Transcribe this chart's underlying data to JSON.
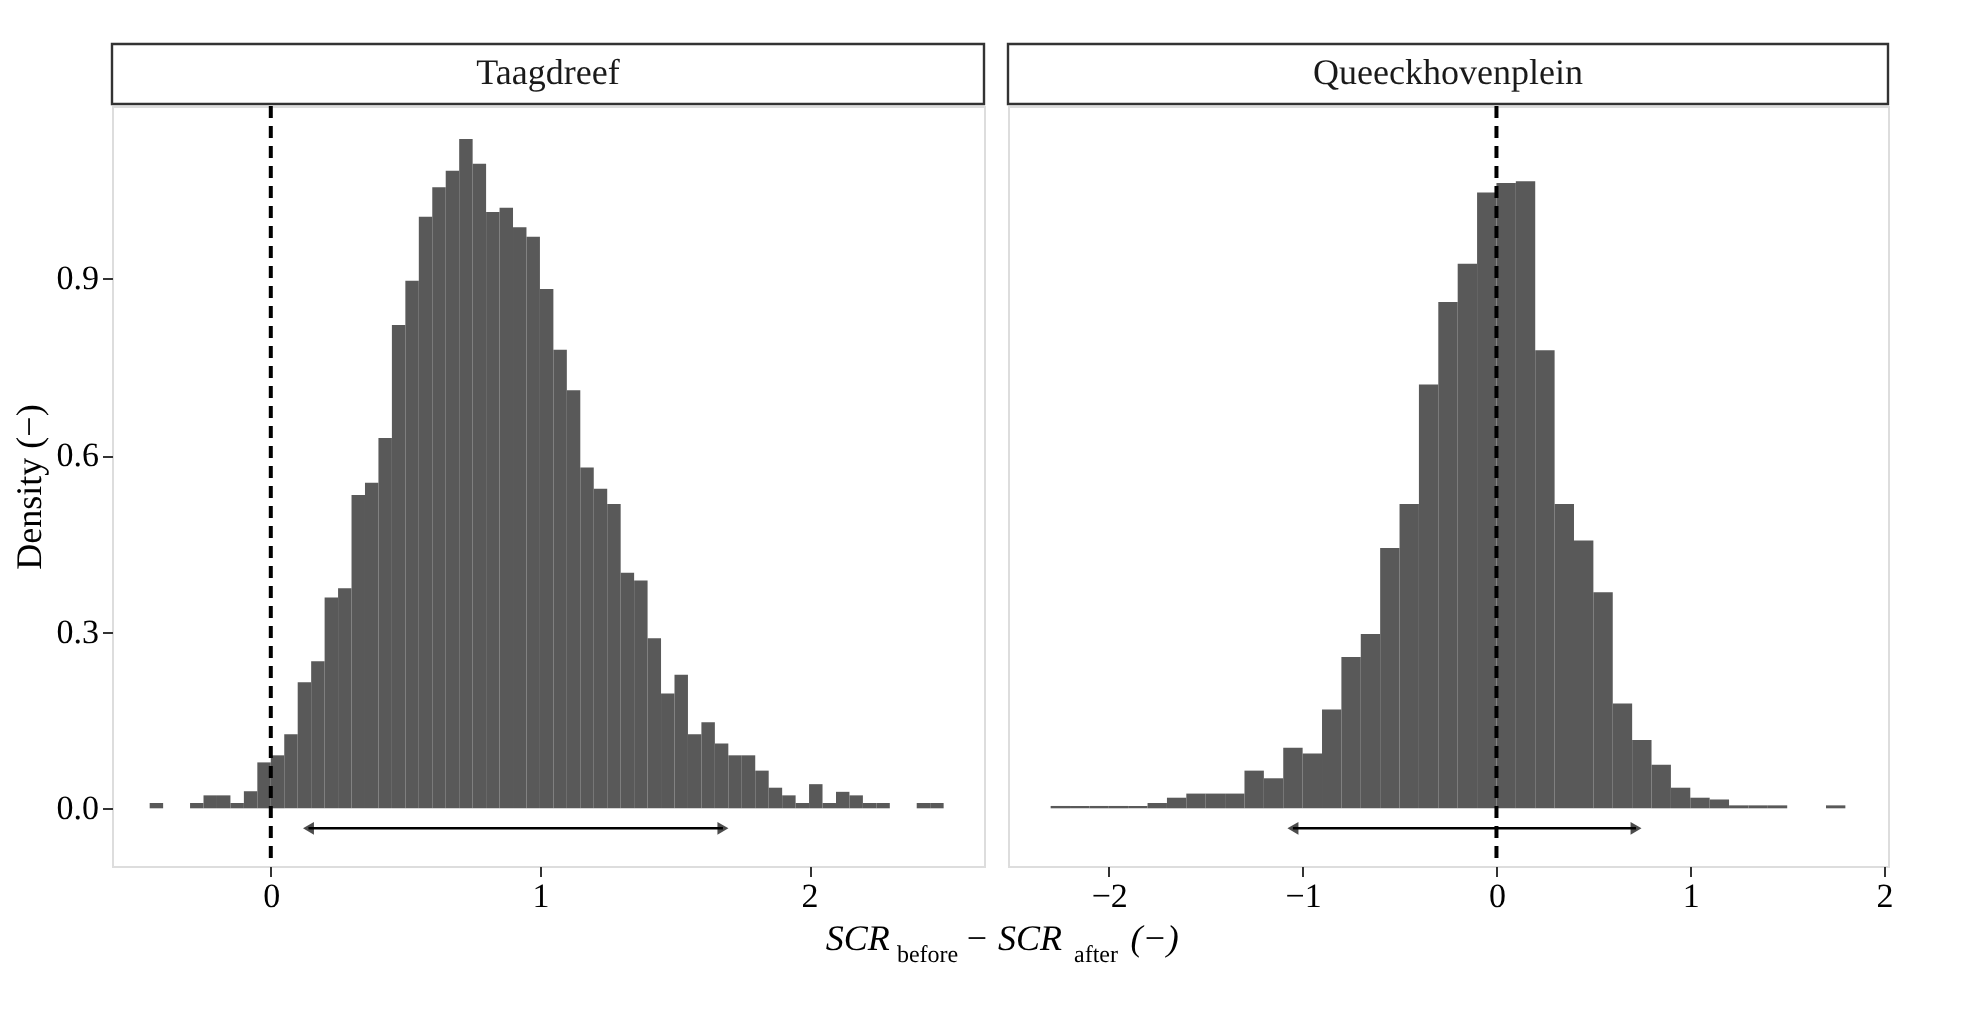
{
  "chart_data": [
    {
      "type": "histogram",
      "title": "Taagdreef",
      "ylabel": "Density (−)",
      "xlabel": "SCR$_{before}$ − SCR$_{after}$(−)",
      "color": "#595959",
      "bins": [
        -0.45,
        -0.4,
        -0.35,
        -0.3,
        -0.25,
        -0.2,
        -0.15,
        -0.1,
        -0.05,
        0,
        0.05,
        0.1,
        0.15,
        0.2,
        0.25,
        0.3,
        0.35,
        0.4,
        0.45,
        0.5,
        0.55,
        0.6,
        0.65,
        0.7,
        0.75,
        0.8,
        0.85,
        0.9,
        0.95,
        1,
        1.05,
        1.1,
        1.15,
        1.2,
        1.25,
        1.3,
        1.35,
        1.4,
        1.45,
        1.5,
        1.55,
        1.6,
        1.65,
        1.7,
        1.75,
        1.8,
        1.85,
        1.9,
        1.95,
        2,
        2.05,
        2.1,
        2.15,
        2.2,
        2.25,
        2.3,
        2.35,
        2.4,
        2.45,
        2.5
      ],
      "values": [
        0.009,
        0,
        0,
        0.009,
        0.022,
        0.022,
        0.009,
        0.029,
        0.078,
        0.09,
        0.126,
        0.214,
        0.25,
        0.358,
        0.374,
        0.532,
        0.553,
        0.629,
        0.821,
        0.896,
        1.005,
        1.055,
        1.083,
        1.137,
        1.095,
        1.013,
        1.02,
        0.987,
        0.971,
        0.882,
        0.779,
        0.71,
        0.579,
        0.543,
        0.517,
        0.4,
        0.387,
        0.289,
        0.195,
        0.227,
        0.126,
        0.146,
        0.11,
        0.09,
        0.09,
        0.064,
        0.035,
        0.022,
        0.009,
        0.041,
        0.009,
        0.028,
        0.022,
        0.009,
        0.009,
        0,
        0,
        0.009,
        0.009
      ],
      "xlim": [
        -0.59,
        2.65
      ],
      "xticks": [
        0,
        1,
        2
      ],
      "ylim": [
        -0.098,
        1.193
      ],
      "yticks": [
        {
          "value": 0,
          "label": "0.0"
        },
        {
          "value": 0.3,
          "label": "0.3"
        },
        {
          "value": 0.6,
          "label": "0.6"
        },
        {
          "value": 0.9,
          "label": "0.9"
        }
      ],
      "ref_lines": [
        {
          "axis": "x",
          "value": 0,
          "color": "#000000",
          "line_style": "dashed"
        }
      ],
      "series": [
        {
          "type": "line",
          "x": [
            0.14,
            1.68
          ],
          "values": [
            -0.034,
            -0.034
          ],
          "color": "#000000",
          "marker": "triangle"
        }
      ],
      "grid": false
    },
    {
      "type": "histogram",
      "title": "Queeckhovenplein",
      "color": "#595959",
      "bins": [
        -2.3,
        -2.2,
        -2.1,
        -2,
        -1.9,
        -1.8,
        -1.7,
        -1.6,
        -1.5,
        -1.4,
        -1.3,
        -1.2,
        -1.1,
        -1,
        -0.9,
        -0.8,
        -0.7,
        -0.6,
        -0.5,
        -0.4,
        -0.3,
        -0.2,
        -0.1,
        0,
        0.1,
        0.2,
        0.3,
        0.4,
        0.5,
        0.6,
        0.7,
        0.8,
        0.9,
        1,
        1.1,
        1.2,
        1.3,
        1.4,
        1.5,
        1.6,
        1.7,
        1.8
      ],
      "values": [
        0.004,
        0.004,
        0.004,
        0.004,
        0.004,
        0.009,
        0.018,
        0.025,
        0.025,
        0.025,
        0.064,
        0.051,
        0.103,
        0.093,
        0.168,
        0.257,
        0.296,
        0.442,
        0.517,
        0.72,
        0.86,
        0.925,
        1.046,
        1.062,
        1.065,
        0.778,
        0.517,
        0.455,
        0.367,
        0.178,
        0.116,
        0.074,
        0.035,
        0.018,
        0.015,
        0.005,
        0.005,
        0.005,
        0,
        0,
        0.005
      ],
      "xlim": [
        -2.52,
        2.02
      ],
      "xticks": [
        {
          "value": -2,
          "label": "−2"
        },
        {
          "value": -1,
          "label": "−1"
        },
        0,
        1,
        2
      ],
      "ylim": [
        -0.098,
        1.193
      ],
      "tick_labels": "x",
      "ref_lines": [
        {
          "axis": "x",
          "value": 0,
          "color": "#000000",
          "line_style": "dashed"
        }
      ],
      "series": [
        {
          "type": "line",
          "x": [
            -1.05,
            0.72
          ],
          "values": [
            -0.034,
            -0.034
          ],
          "color": "#000000",
          "marker": "triangle"
        }
      ],
      "grid": false
    }
  ]
}
